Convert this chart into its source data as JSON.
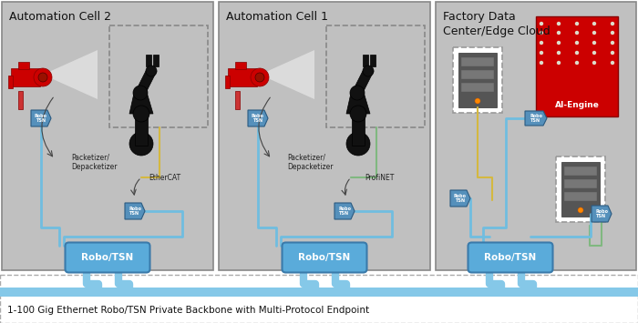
{
  "bg_color": "#ffffff",
  "panel_bg": "#c0c0c0",
  "panel_border": "#888888",
  "blue_connector": "#5590bb",
  "robo_tsn_color": "#5aabda",
  "line_blue": "#70bde0",
  "line_yellow": "#d4b840",
  "line_green": "#80b880",
  "title": "1-100 Gig Ethernet Robo/TSN Private Backbone with Multi-Protocol Endpoint",
  "cell2_title": "Automation Cell 2",
  "cell1_title": "Automation Cell 1",
  "factory_title": "Factory Data\nCenter/Edge Cloud",
  "server_body": "#555555",
  "server_slot": "#777777",
  "robot_color": "#111111",
  "cam_color": "#cc0000",
  "ai_bg": "#cc0000",
  "backbone_color": "#85c8e8"
}
